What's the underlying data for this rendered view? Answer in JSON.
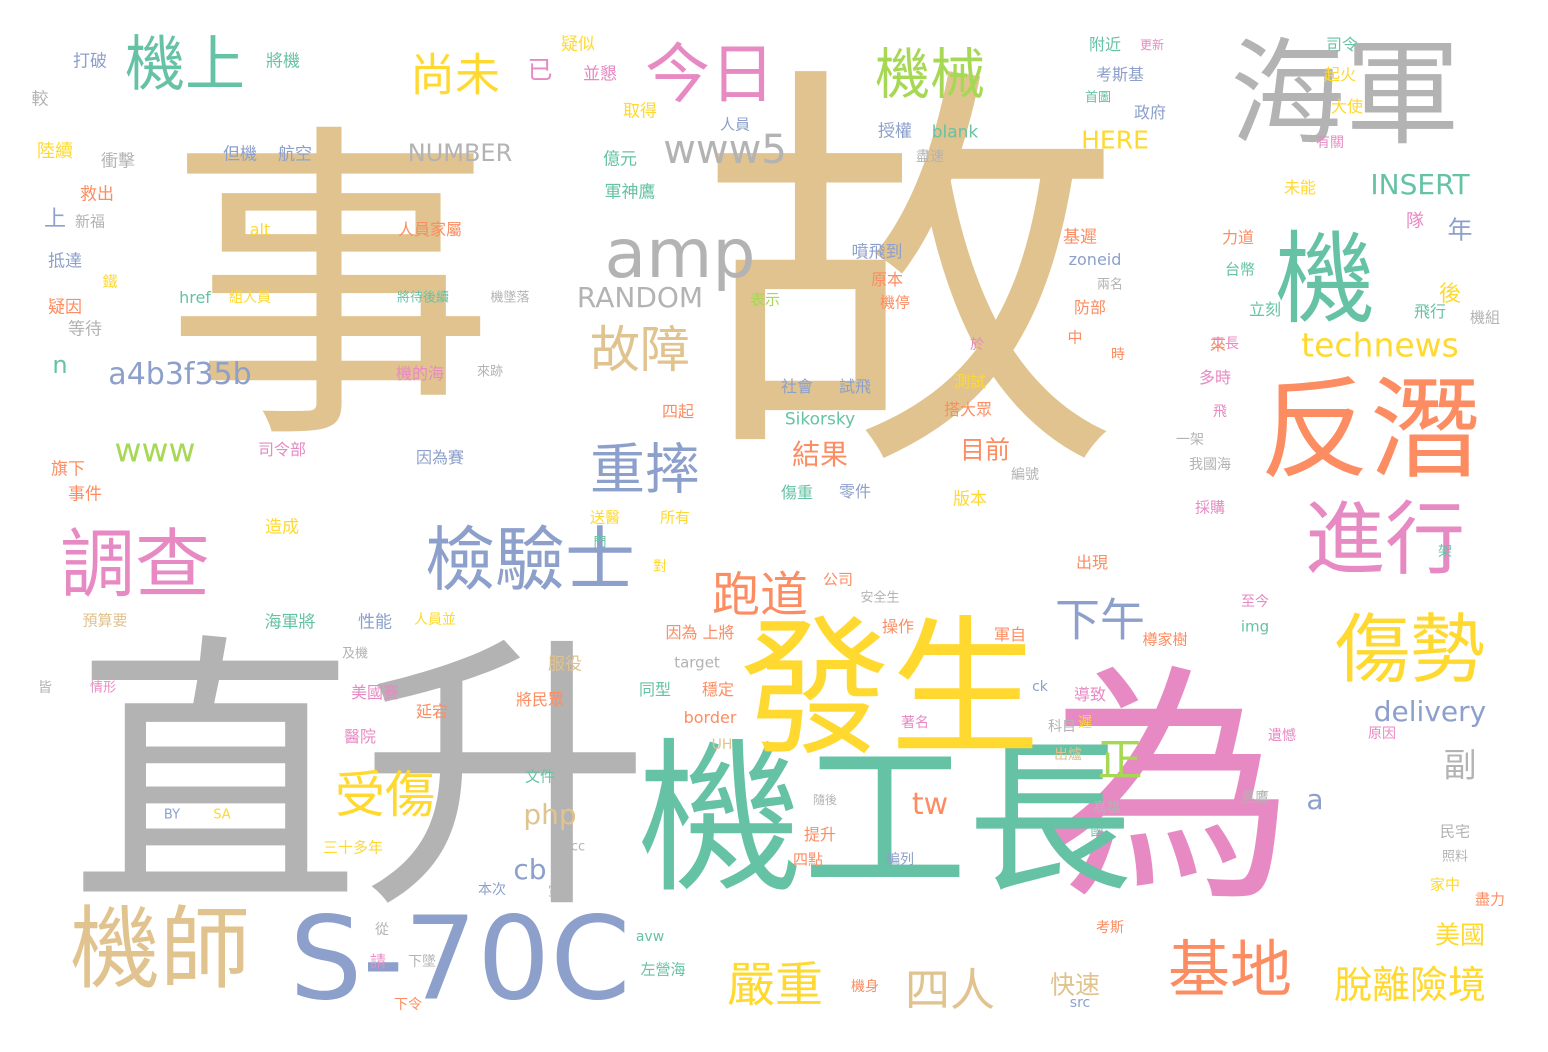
{
  "palette": {
    "tan": "#e0c38e",
    "gray": "#b3b3b3",
    "pink": "#e78ac3",
    "green": "#66c2a5",
    "orange": "#fc8d62",
    "blue": "#8da0cb",
    "yellow": "#ffd92f",
    "lime": "#a6d854"
  },
  "words": [
    {
      "text": "事",
      "color": "tan",
      "weight": 1.0
    },
    {
      "text": "故",
      "color": "tan",
      "weight": 1.0
    },
    {
      "text": "直升",
      "color": "gray",
      "weight": 0.95
    },
    {
      "text": "為",
      "color": "pink",
      "weight": 0.82
    },
    {
      "text": "機工長",
      "color": "green",
      "weight": 0.55
    },
    {
      "text": "發生",
      "color": "yellow",
      "weight": 0.5
    },
    {
      "text": "海軍",
      "color": "gray",
      "weight": 0.45
    },
    {
      "text": "反潛",
      "color": "orange",
      "weight": 0.38
    },
    {
      "text": "機",
      "color": "green",
      "weight": 0.36
    },
    {
      "text": "S-70C",
      "color": "blue",
      "weight": 0.4
    },
    {
      "text": "機師",
      "color": "tan",
      "weight": 0.33
    },
    {
      "text": "進行",
      "color": "pink",
      "weight": 0.32
    },
    {
      "text": "傷勢",
      "color": "yellow",
      "weight": 0.3
    },
    {
      "text": "調查",
      "color": "pink",
      "weight": 0.28
    },
    {
      "text": "檢驗士",
      "color": "blue",
      "weight": 0.27
    },
    {
      "text": "基地",
      "color": "orange",
      "weight": 0.24
    },
    {
      "text": "amp",
      "color": "gray",
      "weight": 0.24
    },
    {
      "text": "今日",
      "color": "pink",
      "weight": 0.22
    },
    {
      "text": "機上",
      "color": "green",
      "weight": 0.22
    },
    {
      "text": "機械",
      "color": "lime",
      "weight": 0.2
    },
    {
      "text": "重摔",
      "color": "blue",
      "weight": 0.2
    },
    {
      "text": "故障",
      "color": "tan",
      "weight": 0.2
    },
    {
      "text": "受傷",
      "color": "yellow",
      "weight": 0.2
    },
    {
      "text": "嚴重",
      "color": "yellow",
      "weight": 0.18
    },
    {
      "text": "跑道",
      "color": "orange",
      "weight": 0.18
    },
    {
      "text": "下午",
      "color": "blue",
      "weight": 0.18
    },
    {
      "text": "尚未",
      "color": "yellow",
      "weight": 0.17
    },
    {
      "text": "四人",
      "color": "tan",
      "weight": 0.17
    },
    {
      "text": "脫離險境",
      "color": "yellow",
      "weight": 0.15
    },
    {
      "text": "www5",
      "color": "gray",
      "weight": 0.14
    },
    {
      "text": "正",
      "color": "lime",
      "weight": 0.14
    },
    {
      "text": "technews",
      "color": "yellow",
      "weight": 0.12
    },
    {
      "text": "a4b3f35b",
      "color": "blue",
      "weight": 0.12
    },
    {
      "text": "www",
      "color": "lime",
      "weight": 0.12
    },
    {
      "text": "tw",
      "color": "orange",
      "weight": 0.12
    },
    {
      "text": "副",
      "color": "gray",
      "weight": 0.12
    },
    {
      "text": "INSERT",
      "color": "green",
      "weight": 0.1
    },
    {
      "text": "RANDOM",
      "color": "gray",
      "weight": 0.1
    },
    {
      "text": "NUMBER",
      "color": "gray",
      "weight": 0.09
    },
    {
      "text": "delivery",
      "color": "blue",
      "weight": 0.1
    },
    {
      "text": "php",
      "color": "tan",
      "weight": 0.1
    },
    {
      "text": "cb",
      "color": "blue",
      "weight": 0.1
    },
    {
      "text": "a",
      "color": "blue",
      "weight": 0.1
    },
    {
      "text": "n",
      "color": "green",
      "weight": 0.09
    },
    {
      "text": "結果",
      "color": "orange",
      "weight": 0.09
    },
    {
      "text": "目前",
      "color": "orange",
      "weight": 0.09
    },
    {
      "text": "HERE",
      "color": "yellow",
      "weight": 0.09
    },
    {
      "text": "快速",
      "color": "tan",
      "weight": 0.08
    },
    {
      "text": "美國",
      "color": "yellow",
      "weight": 0.08
    },
    {
      "text": "已",
      "color": "pink",
      "weight": 0.08
    },
    {
      "text": "年",
      "color": "blue",
      "weight": 0.08
    },
    {
      "text": "後",
      "color": "yellow",
      "weight": 0.08
    },
    {
      "text": "上",
      "color": "blue",
      "weight": 0.07
    },
    {
      "text": "隊",
      "color": "pink",
      "weight": 0.06
    },
    {
      "text": "打破",
      "color": "blue",
      "weight": 0.05
    },
    {
      "text": "將機",
      "color": "green",
      "weight": 0.05
    },
    {
      "text": "疑似",
      "color": "yellow",
      "weight": 0.05
    },
    {
      "text": "並懇",
      "color": "pink",
      "weight": 0.05
    },
    {
      "text": "附近",
      "color": "green",
      "weight": 0.05
    },
    {
      "text": "更新",
      "color": "pink",
      "weight": 0.04
    },
    {
      "text": "考斯基",
      "color": "blue",
      "weight": 0.05
    },
    {
      "text": "司令",
      "color": "green",
      "weight": 0.05
    },
    {
      "text": "起火",
      "color": "yellow",
      "weight": 0.05
    },
    {
      "text": "較",
      "color": "gray",
      "weight": 0.05
    },
    {
      "text": "取得",
      "color": "yellow",
      "weight": 0.05
    },
    {
      "text": "人員",
      "color": "blue",
      "weight": 0.04
    },
    {
      "text": "首圖",
      "color": "green",
      "weight": 0.04
    },
    {
      "text": "政府",
      "color": "blue",
      "weight": 0.05
    },
    {
      "text": "大使",
      "color": "yellow",
      "weight": 0.05
    },
    {
      "text": "陸續",
      "color": "yellow",
      "weight": 0.05
    },
    {
      "text": "衝擊",
      "color": "gray",
      "weight": 0.05
    },
    {
      "text": "但機",
      "color": "blue",
      "weight": 0.05
    },
    {
      "text": "航空",
      "color": "blue",
      "weight": 0.05
    },
    {
      "text": "億元",
      "color": "green",
      "weight": 0.05
    },
    {
      "text": "授權",
      "color": "blue",
      "weight": 0.05
    },
    {
      "text": "blank",
      "color": "green",
      "weight": 0.05
    },
    {
      "text": "有關",
      "color": "pink",
      "weight": 0.04
    },
    {
      "text": "盡速",
      "color": "gray",
      "weight": 0.04
    },
    {
      "text": "救出",
      "color": "orange",
      "weight": 0.05
    },
    {
      "text": "軍神鷹",
      "color": "green",
      "weight": 0.05
    },
    {
      "text": "未能",
      "color": "yellow",
      "weight": 0.05
    },
    {
      "text": "新福",
      "color": "gray",
      "weight": 0.04
    },
    {
      "text": "alt",
      "color": "yellow",
      "weight": 0.04
    },
    {
      "text": "人員家屬",
      "color": "orange",
      "weight": 0.05
    },
    {
      "text": "基遲",
      "color": "orange",
      "weight": 0.05
    },
    {
      "text": "力道",
      "color": "orange",
      "weight": 0.05
    },
    {
      "text": "噴飛到",
      "color": "blue",
      "weight": 0.05
    },
    {
      "text": "抵達",
      "color": "blue",
      "weight": 0.05
    },
    {
      "text": "zoneid",
      "color": "blue",
      "weight": 0.05
    },
    {
      "text": "兩名",
      "color": "gray",
      "weight": 0.04
    },
    {
      "text": "台幣",
      "color": "green",
      "weight": 0.05
    },
    {
      "text": "鐵",
      "color": "yellow",
      "weight": 0.04
    },
    {
      "text": "原本",
      "color": "orange",
      "weight": 0.05
    },
    {
      "text": "表示",
      "color": "lime",
      "weight": 0.04
    },
    {
      "text": "疑因",
      "color": "orange",
      "weight": 0.05
    },
    {
      "text": "href",
      "color": "green",
      "weight": 0.05
    },
    {
      "text": "組人員",
      "color": "yellow",
      "weight": 0.04
    },
    {
      "text": "將待後續",
      "color": "green",
      "weight": 0.04
    },
    {
      "text": "機墜落",
      "color": "gray",
      "weight": 0.03
    },
    {
      "text": "防部",
      "color": "orange",
      "weight": 0.05
    },
    {
      "text": "立刻",
      "color": "green",
      "weight": 0.05
    },
    {
      "text": "機停",
      "color": "orange",
      "weight": 0.05
    },
    {
      "text": "等待",
      "color": "gray",
      "weight": 0.05
    },
    {
      "text": "飛行",
      "color": "green",
      "weight": 0.05
    },
    {
      "text": "機組",
      "color": "gray",
      "weight": 0.05
    },
    {
      "text": "來",
      "color": "orange",
      "weight": 0.05
    },
    {
      "text": "中",
      "color": "orange",
      "weight": 0.05
    },
    {
      "text": "工長",
      "color": "pink",
      "weight": 0.04
    },
    {
      "text": "於",
      "color": "pink",
      "weight": 0.04
    },
    {
      "text": "時",
      "color": "orange",
      "weight": 0.04
    },
    {
      "text": "測試",
      "color": "yellow",
      "weight": 0.05
    },
    {
      "text": "多時",
      "color": "pink",
      "weight": 0.05
    },
    {
      "text": "機的海",
      "color": "pink",
      "weight": 0.05
    },
    {
      "text": "來跡",
      "color": "gray",
      "weight": 0.03
    },
    {
      "text": "社會",
      "color": "blue",
      "weight": 0.04
    },
    {
      "text": "試飛",
      "color": "blue",
      "weight": 0.05
    },
    {
      "text": "四起",
      "color": "orange",
      "weight": 0.05
    },
    {
      "text": "搭大眾",
      "color": "orange",
      "weight": 0.05
    },
    {
      "text": "Sikorsky",
      "color": "green",
      "weight": 0.05
    },
    {
      "text": "飛",
      "color": "pink",
      "weight": 0.04
    },
    {
      "text": "一架",
      "color": "gray",
      "weight": 0.04
    },
    {
      "text": "司令部",
      "color": "pink",
      "weight": 0.05
    },
    {
      "text": "因為賽",
      "color": "blue",
      "weight": 0.05
    },
    {
      "text": "旗下",
      "color": "orange",
      "weight": 0.05
    },
    {
      "text": "編號",
      "color": "gray",
      "weight": 0.04
    },
    {
      "text": "我國海",
      "color": "gray",
      "weight": 0.04
    },
    {
      "text": "事件",
      "color": "orange",
      "weight": 0.05
    },
    {
      "text": "傷重",
      "color": "green",
      "weight": 0.04
    },
    {
      "text": "零件",
      "color": "blue",
      "weight": 0.04
    },
    {
      "text": "版本",
      "color": "yellow",
      "weight": 0.05
    },
    {
      "text": "採購",
      "color": "pink",
      "weight": 0.04
    },
    {
      "text": "造成",
      "color": "yellow",
      "weight": 0.05
    },
    {
      "text": "送醫",
      "color": "yellow",
      "weight": 0.05
    },
    {
      "text": "所有",
      "color": "yellow",
      "weight": 0.05
    },
    {
      "text": "門",
      "color": "green",
      "weight": 0.04
    },
    {
      "text": "架",
      "color": "green",
      "weight": 0.04
    },
    {
      "text": "對",
      "color": "yellow",
      "weight": 0.04
    },
    {
      "text": "出現",
      "color": "orange",
      "weight": 0.05
    },
    {
      "text": "公司",
      "color": "orange",
      "weight": 0.04
    },
    {
      "text": "安全生",
      "color": "gray",
      "weight": 0.03
    },
    {
      "text": "至今",
      "color": "pink",
      "weight": 0.04
    },
    {
      "text": "預算要",
      "color": "tan",
      "weight": 0.04
    },
    {
      "text": "海軍將",
      "color": "green",
      "weight": 0.05
    },
    {
      "text": "性能",
      "color": "blue",
      "weight": 0.05
    },
    {
      "text": "人員並",
      "color": "yellow",
      "weight": 0.04
    },
    {
      "text": "操作",
      "color": "orange",
      "weight": 0.05
    },
    {
      "text": "因為 上將",
      "color": "orange",
      "weight": 0.05
    },
    {
      "text": "軍自",
      "color": "orange",
      "weight": 0.05
    },
    {
      "text": "img",
      "color": "green",
      "weight": 0.05
    },
    {
      "text": "樽家樹",
      "color": "orange",
      "weight": 0.04
    },
    {
      "text": "及機",
      "color": "gray",
      "weight": 0.03
    },
    {
      "text": "服役",
      "color": "tan",
      "weight": 0.05
    },
    {
      "text": "target",
      "color": "gray",
      "weight": 0.04
    },
    {
      "text": "皆",
      "color": "gray",
      "weight": 0.04
    },
    {
      "text": "情形",
      "color": "pink",
      "weight": 0.04
    },
    {
      "text": "美國賽",
      "color": "pink",
      "weight": 0.05
    },
    {
      "text": "延宕",
      "color": "orange",
      "weight": 0.05
    },
    {
      "text": "同型",
      "color": "green",
      "weight": 0.05
    },
    {
      "text": "穩定",
      "color": "orange",
      "weight": 0.05
    },
    {
      "text": "導致",
      "color": "pink",
      "weight": 0.05
    },
    {
      "text": "遲",
      "color": "yellow",
      "weight": 0.04
    },
    {
      "text": "ck",
      "color": "blue",
      "weight": 0.04
    },
    {
      "text": "將民眾",
      "color": "orange",
      "weight": 0.05
    },
    {
      "text": "border",
      "color": "orange",
      "weight": 0.05
    },
    {
      "text": "著名",
      "color": "pink",
      "weight": 0.04
    },
    {
      "text": "醫院",
      "color": "pink",
      "weight": 0.05
    },
    {
      "text": "UH",
      "color": "tan",
      "weight": 0.04
    },
    {
      "text": "科目",
      "color": "gray",
      "weight": 0.04
    },
    {
      "text": "遺憾",
      "color": "pink",
      "weight": 0.04
    },
    {
      "text": "原因",
      "color": "pink",
      "weight": 0.04
    },
    {
      "text": "出爐",
      "color": "tan",
      "weight": 0.04
    },
    {
      "text": "文件",
      "color": "green",
      "weight": 0.04
    },
    {
      "text": "黑鷹",
      "color": "gray",
      "weight": 0.04
    },
    {
      "text": "隨後",
      "color": "gray",
      "weight": 0.03
    },
    {
      "text": "高雄",
      "color": "gray",
      "weight": 0.04
    },
    {
      "text": "國",
      "color": "green",
      "weight": 0.04
    },
    {
      "text": "BY",
      "color": "blue",
      "weight": 0.03
    },
    {
      "text": "SA",
      "color": "yellow",
      "weight": 0.03
    },
    {
      "text": "提升",
      "color": "orange",
      "weight": 0.05
    },
    {
      "text": "民宅",
      "color": "gray",
      "weight": 0.04
    },
    {
      "text": "三十多年",
      "color": "yellow",
      "weight": 0.04
    },
    {
      "text": "cc",
      "color": "gray",
      "weight": 0.03
    },
    {
      "text": "四點",
      "color": "orange",
      "weight": 0.04
    },
    {
      "text": "編列",
      "color": "blue",
      "weight": 0.04
    },
    {
      "text": "照料",
      "color": "gray",
      "weight": 0.03
    },
    {
      "text": "家中",
      "color": "yellow",
      "weight": 0.04
    },
    {
      "text": "本次",
      "color": "blue",
      "weight": 0.04
    },
    {
      "text": "軍",
      "color": "gray",
      "weight": 0.04
    },
    {
      "text": "盡力",
      "color": "orange",
      "weight": 0.04
    },
    {
      "text": "從",
      "color": "gray",
      "weight": 0.04
    },
    {
      "text": "avw",
      "color": "green",
      "weight": 0.04
    },
    {
      "text": "請",
      "color": "pink",
      "weight": 0.04
    },
    {
      "text": "考斯",
      "color": "orange",
      "weight": 0.04
    },
    {
      "text": "下墜",
      "color": "gray",
      "weight": 0.04
    },
    {
      "text": "左營海",
      "color": "green",
      "weight": 0.04
    },
    {
      "text": "機身",
      "color": "orange",
      "weight": 0.04
    },
    {
      "text": "src",
      "color": "blue",
      "weight": 0.04
    },
    {
      "text": "下令",
      "color": "orange",
      "weight": 0.04
    }
  ]
}
